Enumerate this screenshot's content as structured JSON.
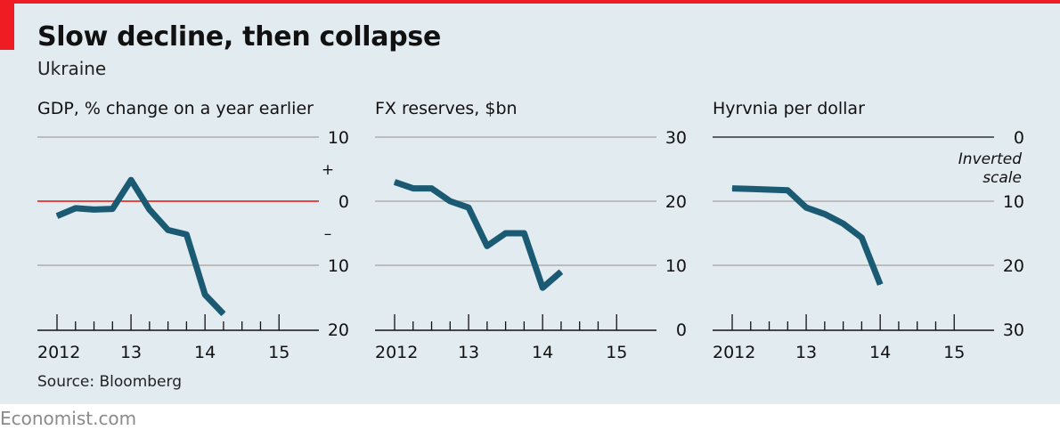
{
  "title": "Slow decline, then collapse",
  "subtitle": "Ukraine",
  "source": "Source: Bloomberg",
  "footer": "Economist.com",
  "colors": {
    "background": "#e2ebf0",
    "line": "#1b5a73",
    "zero_line": "#e3120b",
    "grid": "#bcbcbc",
    "accent": "#ef1c24"
  },
  "chart_data": [
    {
      "type": "line",
      "title": "GDP, % change on a year earlier",
      "x_tick_labels": [
        "2012",
        "13",
        "14",
        "15"
      ],
      "x_ticks": [
        2012,
        2013,
        2014,
        2015
      ],
      "xlim": [
        2012,
        2015.25
      ],
      "ylim": [
        -20,
        10
      ],
      "y_ticks": [
        10,
        0,
        -10,
        -20
      ],
      "y_tick_labels": [
        "10",
        "0",
        "10",
        "20"
      ],
      "sign_labels": [
        "+",
        "–"
      ],
      "zero_line": true,
      "x": [
        2012.0,
        2012.25,
        2012.5,
        2012.75,
        2013.0,
        2013.25,
        2013.5,
        2013.75,
        2014.0,
        2014.25,
        2014.5,
        2014.75
      ],
      "y": [
        -2.3,
        -1.1,
        -1.3,
        -1.2,
        3.3,
        -1.3,
        -4.5,
        -5.2,
        -14.6,
        -17.6,
        null,
        null
      ],
      "grid": true
    },
    {
      "type": "line",
      "title": "FX reserves, $bn",
      "x_tick_labels": [
        "2012",
        "13",
        "14",
        "15"
      ],
      "x_ticks": [
        2012,
        2013,
        2014,
        2015
      ],
      "xlim": [
        2012,
        2015.25
      ],
      "ylim": [
        0,
        30
      ],
      "y_ticks": [
        30,
        20,
        10,
        0
      ],
      "y_tick_labels": [
        "30",
        "20",
        "10",
        "0"
      ],
      "x": [
        2012.0,
        2012.25,
        2012.5,
        2012.75,
        2013.0,
        2013.25,
        2013.5,
        2013.75,
        2014.0,
        2014.25,
        2014.5
      ],
      "y": [
        23.0,
        22.0,
        22.0,
        20.0,
        19.0,
        13.0,
        15.0,
        15.0,
        6.5,
        9.0,
        null
      ],
      "grid": true
    },
    {
      "type": "line",
      "title": "Hyrvnia per dollar",
      "x_tick_labels": [
        "2012",
        "13",
        "14",
        "15"
      ],
      "x_ticks": [
        2012,
        2013,
        2014,
        2015
      ],
      "xlim": [
        2012,
        2015.25
      ],
      "ylim": [
        30,
        0
      ],
      "y_ticks": [
        0,
        10,
        20,
        30
      ],
      "y_tick_labels": [
        "0",
        "10",
        "20",
        "30"
      ],
      "inverted": true,
      "annotation": [
        "Inverted",
        "scale"
      ],
      "x": [
        2012.0,
        2012.25,
        2012.5,
        2012.75,
        2013.0,
        2013.25,
        2013.5,
        2013.75,
        2014.0,
        2014.25,
        2014.5,
        2014.75
      ],
      "y": [
        8.0,
        8.1,
        8.2,
        8.3,
        11.0,
        12.0,
        13.5,
        15.7,
        23.0,
        null,
        null,
        null
      ],
      "grid": true
    }
  ]
}
